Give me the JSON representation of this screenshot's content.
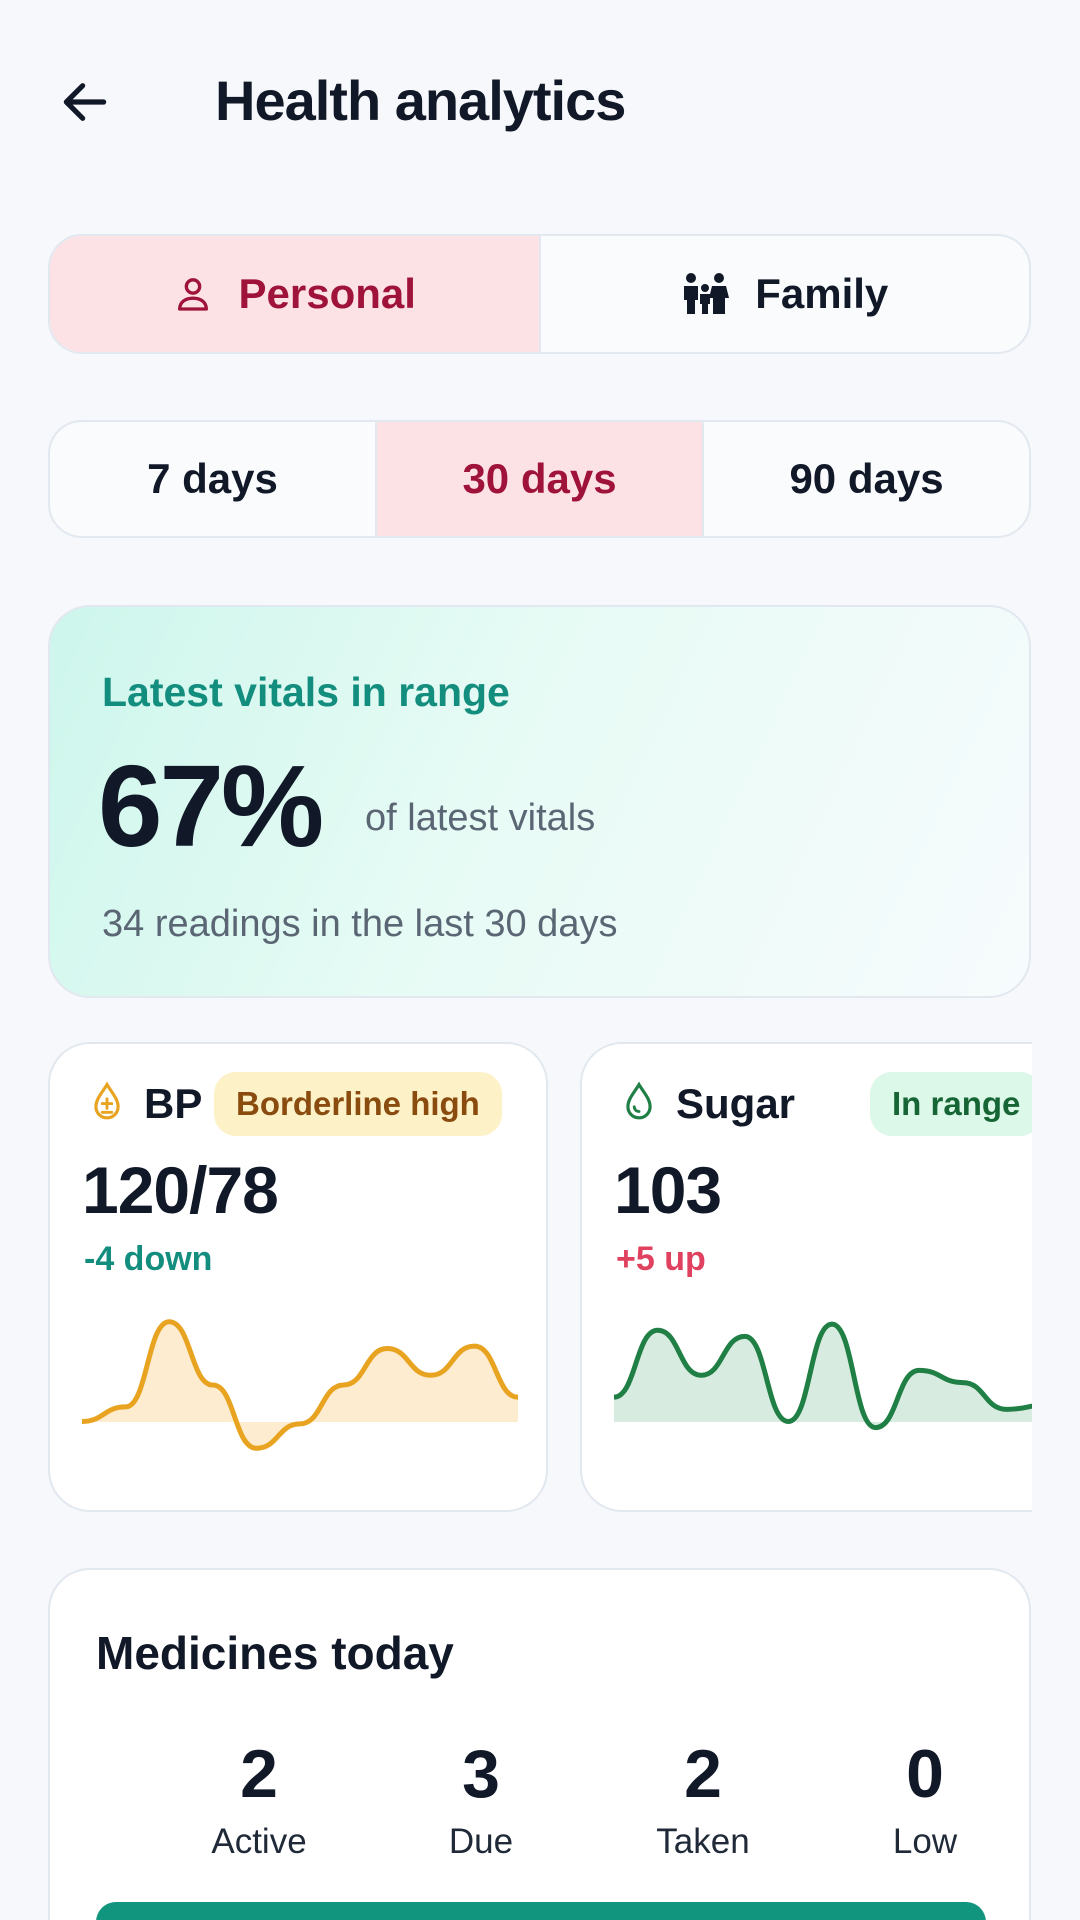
{
  "header": {
    "title": "Health analytics",
    "back_icon": "arrow-left-icon"
  },
  "scope_tabs": [
    {
      "label": "Personal",
      "icon": "person-icon",
      "active": true
    },
    {
      "label": "Family",
      "icon": "family-icon",
      "active": false
    }
  ],
  "range_tabs": [
    {
      "label": "7 days",
      "active": false
    },
    {
      "label": "30 days",
      "active": true
    },
    {
      "label": "90 days",
      "active": false
    }
  ],
  "summary": {
    "title": "Latest vitals in range",
    "percent": "67%",
    "percent_caption": "of latest vitals",
    "note": "34 readings in the last 30 days"
  },
  "vitals": [
    {
      "name": "BP",
      "icon": "blood-pressure-drop-icon",
      "badge": "Borderline high",
      "value": "120/78",
      "delta": "-4 down",
      "color": "#e8a320",
      "fill": "#fdecd0",
      "trend": [
        10,
        22,
        92,
        40,
        -12,
        8,
        40,
        70,
        48,
        72,
        30
      ]
    },
    {
      "name": "Sugar",
      "icon": "water-drop-icon",
      "badge": "In range",
      "value": "103",
      "delta": "+5 up",
      "color": "#1f7f44",
      "fill": "#d8ebe0",
      "trend": [
        30,
        85,
        48,
        80,
        10,
        90,
        5,
        52,
        42,
        20,
        24
      ]
    }
  ],
  "medicines": {
    "title": "Medicines today",
    "stats": [
      {
        "value": "2",
        "label": "Active"
      },
      {
        "value": "3",
        "label": "Due"
      },
      {
        "value": "2",
        "label": "Taken"
      },
      {
        "value": "0",
        "label": "Low"
      }
    ]
  },
  "colors": {
    "accent_pink": "#9f1239",
    "accent_pink_bg": "#fde2e5",
    "accent_teal": "#138d7e",
    "cta_teal": "#12957e"
  }
}
